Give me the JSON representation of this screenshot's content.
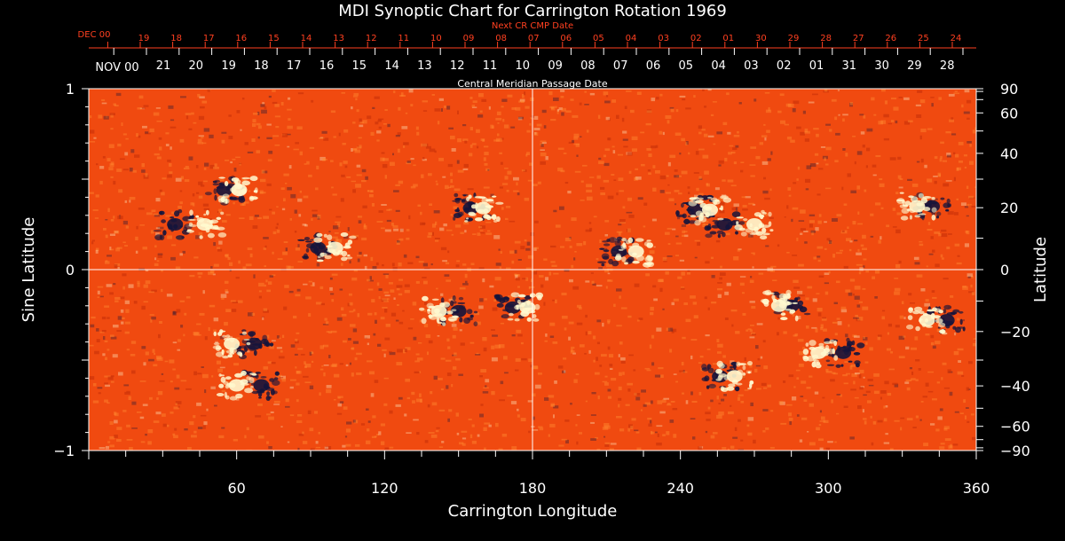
{
  "chart_data": {
    "type": "heatmap",
    "title": "MDI Synoptic Chart for Carrington Rotation 1969",
    "xlabel": "Carrington Longitude",
    "ylabel_left": "Sine Latitude",
    "ylabel_right": "Latitude",
    "xlim": [
      0,
      360
    ],
    "ylim": [
      -1,
      1
    ],
    "x_ticks": [
      60,
      120,
      180,
      240,
      300,
      360
    ],
    "y_ticks_left": [
      {
        "value": 1,
        "label": "1"
      },
      {
        "value": 0,
        "label": "0"
      },
      {
        "value": -1,
        "label": "−1"
      }
    ],
    "lat_ticks_right": [
      {
        "deg": 90,
        "label": "90"
      },
      {
        "deg": 60,
        "label": "60"
      },
      {
        "deg": 40,
        "label": "40"
      },
      {
        "deg": 20,
        "label": "20"
      },
      {
        "deg": 0,
        "label": "0"
      },
      {
        "deg": -20,
        "label": "−20"
      },
      {
        "deg": -40,
        "label": "−40"
      },
      {
        "deg": -60,
        "label": "−60"
      },
      {
        "deg": -90,
        "label": "−90"
      }
    ],
    "top_axis_red": {
      "title": "Next CR CMP Date",
      "month_label": "DEC 00",
      "labels": [
        "19",
        "18",
        "17",
        "16",
        "15",
        "14",
        "13",
        "12",
        "11",
        "10",
        "09",
        "08",
        "07",
        "06",
        "05",
        "04",
        "03",
        "02",
        "01",
        "30",
        "29",
        "28",
        "27",
        "26",
        "25",
        "24"
      ]
    },
    "top_axis_white": {
      "title": "Central Meridian Passage Date",
      "month_label": "NOV 00",
      "labels": [
        "21",
        "20",
        "19",
        "18",
        "17",
        "16",
        "15",
        "14",
        "13",
        "12",
        "11",
        "10",
        "09",
        "08",
        "07",
        "06",
        "05",
        "04",
        "03",
        "02",
        "01",
        "31",
        "30",
        "29",
        "28"
      ]
    },
    "colors": {
      "background": "#000000",
      "field_base": "#f04a10",
      "field_light": "#ff8a30",
      "positive_polarity": "#fffad0",
      "negative_polarity": "#14143c",
      "red_axis": "#ff4020",
      "axis": "#ffffff"
    },
    "active_regions": [
      {
        "lon": 42,
        "sinlat": 0.25,
        "pos_lon": 47,
        "neg_lon": 35
      },
      {
        "lon": 58,
        "sinlat": 0.44,
        "pos_lon": 61,
        "neg_lon": 55
      },
      {
        "lon": 98,
        "sinlat": 0.12,
        "pos_lon": 100,
        "neg_lon": 93
      },
      {
        "lon": 158,
        "sinlat": 0.34,
        "pos_lon": 160,
        "neg_lon": 155
      },
      {
        "lon": 262,
        "sinlat": 0.25,
        "pos_lon": 270,
        "neg_lon": 258
      },
      {
        "lon": 250,
        "sinlat": 0.33,
        "pos_lon": 252,
        "neg_lon": 246
      },
      {
        "lon": 220,
        "sinlat": 0.1,
        "pos_lon": 222,
        "neg_lon": 215
      },
      {
        "lon": 60,
        "sinlat": -0.41,
        "pos_lon": 58,
        "neg_lon": 67
      },
      {
        "lon": 145,
        "sinlat": -0.23,
        "pos_lon": 142,
        "neg_lon": 150
      },
      {
        "lon": 174,
        "sinlat": -0.21,
        "pos_lon": 178,
        "neg_lon": 172
      },
      {
        "lon": 298,
        "sinlat": -0.46,
        "pos_lon": 296,
        "neg_lon": 306
      },
      {
        "lon": 345,
        "sinlat": -0.28,
        "pos_lon": 340,
        "neg_lon": 348
      },
      {
        "lon": 282,
        "sinlat": -0.2,
        "pos_lon": 280,
        "neg_lon": 285
      },
      {
        "lon": 65,
        "sinlat": -0.64,
        "pos_lon": 60,
        "neg_lon": 70
      },
      {
        "lon": 260,
        "sinlat": -0.59,
        "pos_lon": 262,
        "neg_lon": 256
      },
      {
        "lon": 338,
        "sinlat": 0.35,
        "pos_lon": 336,
        "neg_lon": 342
      }
    ]
  }
}
